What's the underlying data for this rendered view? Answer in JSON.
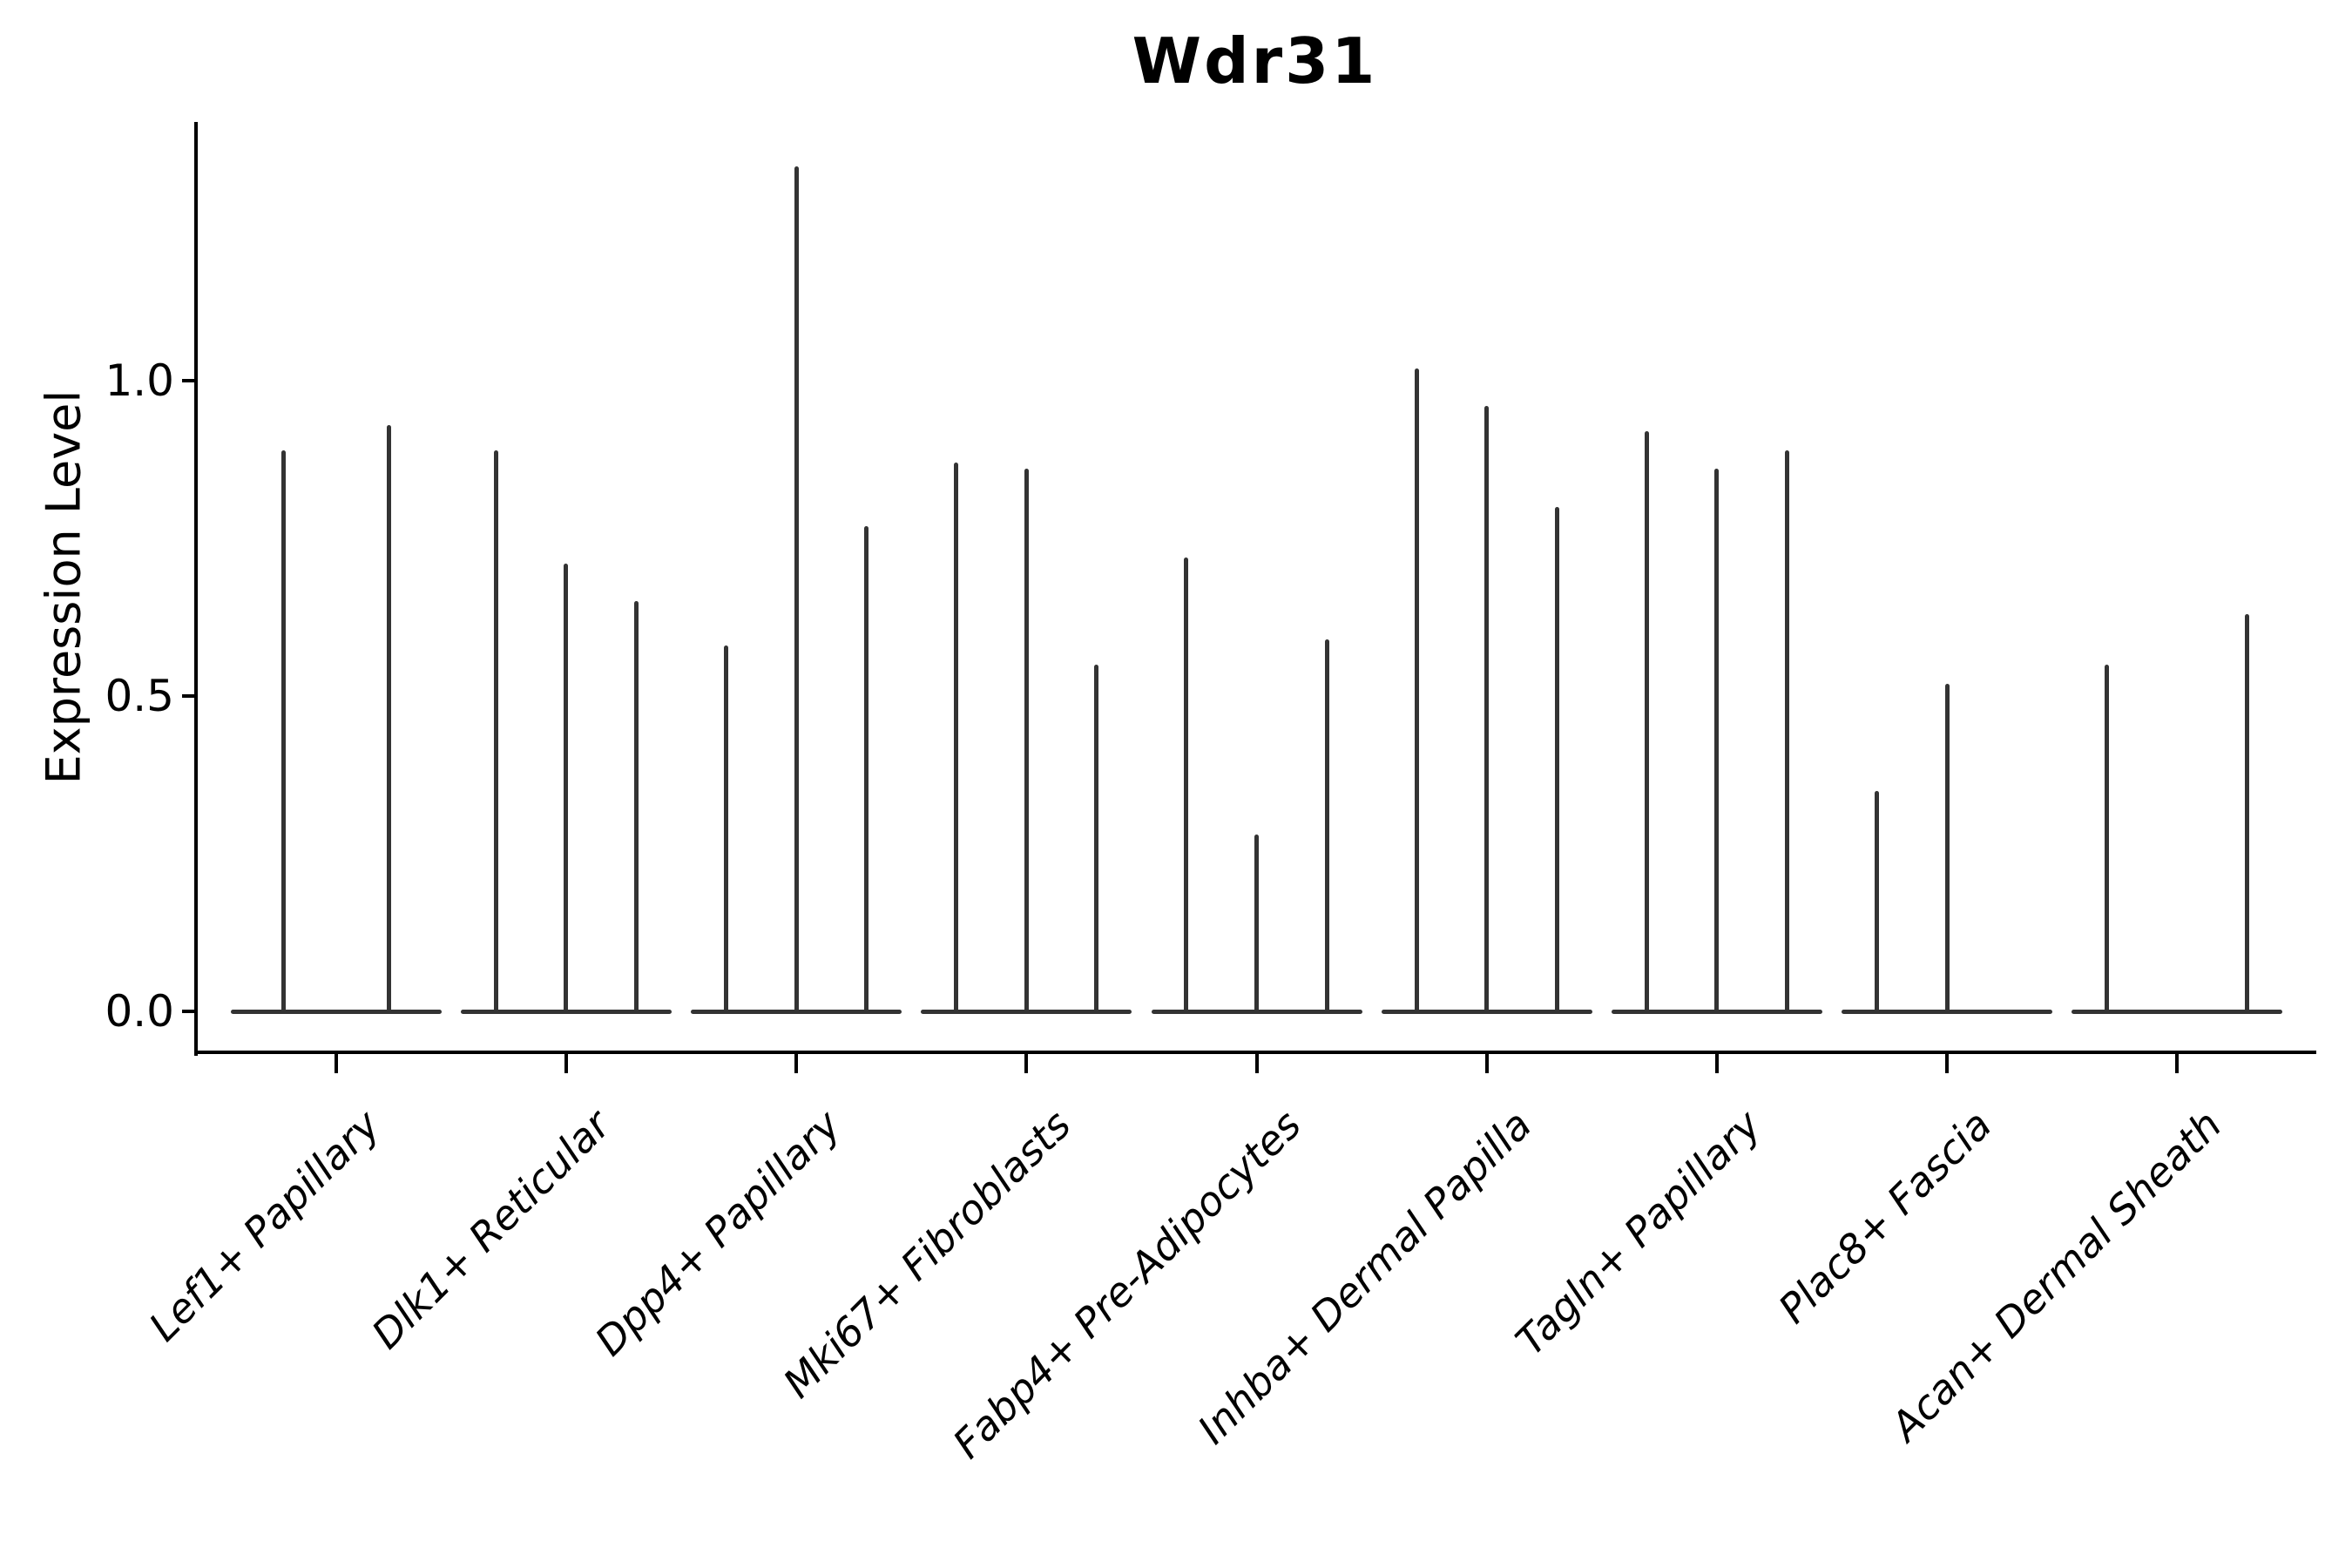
{
  "figure": {
    "background": "#ffffff",
    "axis_color": "#000000",
    "violin_color": "#333333"
  },
  "chart_data": {
    "type": "violin",
    "title": "Wdr31",
    "xlabel": "",
    "ylabel": "Expression Level",
    "yticks": [
      {
        "label": "0.0",
        "value": 0.0
      },
      {
        "label": "0.5",
        "value": 0.5
      },
      {
        "label": "1.0",
        "value": 1.0
      }
    ],
    "ylim": [
      -0.07,
      1.41
    ],
    "grid": false,
    "legend": "none",
    "note": "Each category shows collapsed violins: a flat base at expression 0 with a thin spike up to the maximum expression value; 0 means a fully flat violin with no spike.",
    "categories": [
      "Lef1+ Papillary",
      "Dlk1+ Reticular",
      "Dpp4+ Papillary",
      "Mki67+ Fibroblasts",
      "Fabp4+ Pre-Adipocytes",
      "Inhba+ Dermal Papilla",
      "Tagln+ Papillary",
      "Plac8+ Fascia",
      "Acan+ Dermal Sheath"
    ],
    "series": [
      {
        "category": "Lef1+ Papillary",
        "spike_maxima": [
          0.89,
          0.93
        ]
      },
      {
        "category": "Dlk1+ Reticular",
        "spike_maxima": [
          0.89,
          0.71,
          0.65
        ]
      },
      {
        "category": "Dpp4+ Papillary",
        "spike_maxima": [
          0.58,
          1.34,
          0.77
        ]
      },
      {
        "category": "Mki67+ Fibroblasts",
        "spike_maxima": [
          0.87,
          0.86,
          0.55
        ]
      },
      {
        "category": "Fabp4+ Pre-Adipocytes",
        "spike_maxima": [
          0.72,
          0.28,
          0.59
        ]
      },
      {
        "category": "Inhba+ Dermal Papilla",
        "spike_maxima": [
          1.02,
          0.96,
          0.8
        ]
      },
      {
        "category": "Tagln+ Papillary",
        "spike_maxima": [
          0.92,
          0.86,
          0.89
        ]
      },
      {
        "category": "Plac8+ Fascia",
        "spike_maxima": [
          0.35,
          0.52,
          0.0
        ]
      },
      {
        "category": "Acan+ Dermal Sheath",
        "spike_maxima": [
          0.55,
          0.0,
          0.63
        ]
      }
    ]
  }
}
